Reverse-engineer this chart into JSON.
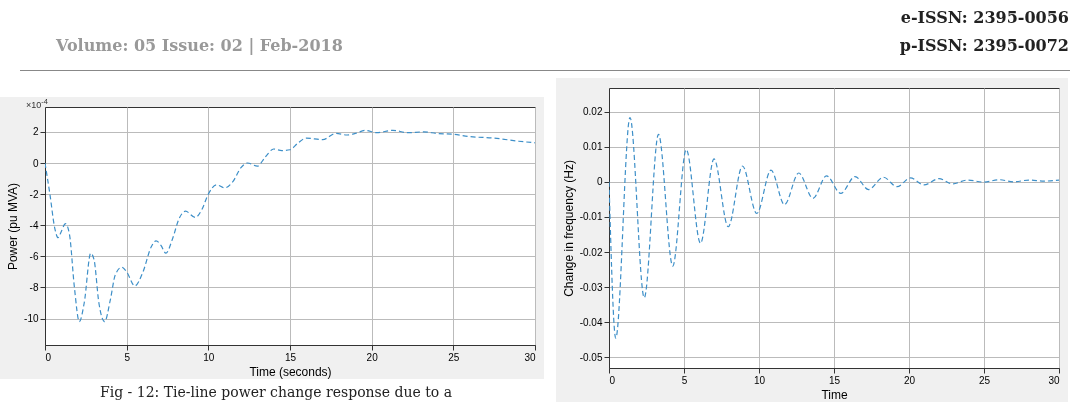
{
  "chart_data": [
    {
      "type": "line",
      "xlabel": "Time (seconds)",
      "ylabel": "Power (pu MVA)",
      "xlim": [
        0,
        30
      ],
      "xticks": [
        0,
        5,
        10,
        15,
        20,
        25,
        30
      ],
      "ylim": [
        -11.7,
        3.6
      ],
      "yticks": [
        -10,
        -8,
        -6,
        -4,
        -2,
        0,
        2
      ],
      "grid": true,
      "line_style": "dashed",
      "annotations": [
        "Volume: 05 Issue: 02 | Feb-2018",
        "e-ISSN: 2395-0056",
        "p-ISSN: 2395-0072",
        "×10$^{-4}$",
        "Fig - 12: Tie-line power change response due to a"
      ],
      "series": [
        {
          "color": "#3d8fc8",
          "x": [
            0,
            0.3,
            0.6,
            0.8,
            1.0,
            1.25,
            1.5,
            1.8,
            2.1,
            2.4,
            2.8,
            3.0,
            3.3,
            3.65,
            4.0,
            4.3,
            4.7,
            5.0,
            5.5,
            6.0,
            6.5,
            6.8,
            7.1,
            7.4,
            7.8,
            8.2,
            8.6,
            9.2,
            9.6,
            10.0,
            10.5,
            11.0,
            11.5,
            12.0,
            12.4,
            13.0,
            13.5,
            14.0,
            14.5,
            15.0,
            15.5,
            16.0,
            17.0,
            17.8,
            18.5,
            19.0,
            19.6,
            20.3,
            21.3,
            22.2,
            23.2,
            24.0,
            25.0,
            26.0,
            27.5,
            29.0,
            30
          ],
          "values": [
            0,
            -2,
            -4.2,
            -4.8,
            -4.4,
            -3.9,
            -4.6,
            -8,
            -10.2,
            -9,
            -5.8,
            -6.2,
            -9,
            -10.2,
            -8.8,
            -7.2,
            -6.7,
            -7.0,
            -7.9,
            -7.0,
            -5.4,
            -5.0,
            -5.3,
            -5.8,
            -4.9,
            -3.6,
            -3.1,
            -3.5,
            -3.0,
            -2.0,
            -1.4,
            -1.6,
            -1.2,
            -0.3,
            0,
            -0.2,
            0.4,
            0.9,
            0.8,
            0.85,
            1.3,
            1.6,
            1.5,
            1.9,
            1.8,
            1.9,
            2.1,
            1.95,
            2.1,
            1.95,
            2.0,
            1.9,
            1.85,
            1.7,
            1.6,
            1.4,
            1.3
          ]
        }
      ]
    },
    {
      "type": "line",
      "xlabel": "Time",
      "ylabel": "Change in frequency (Hz)",
      "xlim": [
        0,
        30
      ],
      "xticks": [
        0,
        5,
        10,
        15,
        20,
        25,
        30
      ],
      "ylim": [
        -0.053,
        0.0267
      ],
      "yticks": [
        -0.05,
        -0.04,
        -0.03,
        -0.02,
        -0.01,
        0,
        0.01,
        0.02
      ],
      "grid": true,
      "line_style": "dashed",
      "series": [
        {
          "color": "#3d8fc8",
          "x": [
            0,
            0.45,
            1.4,
            2.35,
            3.3,
            4.25,
            5.15,
            6.1,
            7.0,
            7.95,
            8.9,
            9.85,
            10.8,
            11.7,
            12.65,
            13.6,
            14.5,
            15.45,
            16.4,
            17.3,
            18.3,
            19.2,
            20.1,
            21.0,
            22.0,
            22.9,
            23.9,
            25.0,
            26.0,
            27,
            28,
            29,
            30
          ],
          "values": [
            0,
            -0.0445,
            0.0183,
            -0.033,
            0.0135,
            -0.024,
            0.0092,
            -0.0175,
            0.0065,
            -0.0128,
            0.0045,
            -0.009,
            0.0033,
            -0.0065,
            0.0025,
            -0.0047,
            0.0017,
            -0.0033,
            0.0015,
            -0.0022,
            0.0013,
            -0.0014,
            0.0011,
            -0.0009,
            0.0009,
            -0.0006,
            0.0005,
            -0.0001,
            0.0006,
            0,
            0.0005,
            0.0002,
            0.0005
          ]
        }
      ]
    }
  ]
}
